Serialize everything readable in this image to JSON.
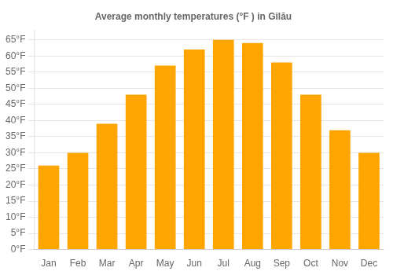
{
  "chart_data": {
    "type": "bar",
    "title": "Average monthly temperatures (°F ) in Gilău",
    "categories": [
      "Jan",
      "Feb",
      "Mar",
      "Apr",
      "May",
      "Jun",
      "Jul",
      "Aug",
      "Sep",
      "Oct",
      "Nov",
      "Dec"
    ],
    "values": [
      26,
      30,
      39,
      48,
      57,
      62,
      65,
      64,
      58,
      48,
      37,
      30
    ],
    "color": "#FFA500",
    "ylim": [
      0,
      68
    ],
    "yticks": [
      {
        "value": 0,
        "label": "0°F"
      },
      {
        "value": 5,
        "label": "5°F"
      },
      {
        "value": 10,
        "label": "10°F"
      },
      {
        "value": 15,
        "label": "15°F"
      },
      {
        "value": 20,
        "label": "20°F"
      },
      {
        "value": 25,
        "label": "25°F"
      },
      {
        "value": 30,
        "label": "30°F"
      },
      {
        "value": 35,
        "label": "35°F"
      },
      {
        "value": 40,
        "label": "40°F"
      },
      {
        "value": 45,
        "label": "45°F"
      },
      {
        "value": 50,
        "label": "50°F"
      },
      {
        "value": 55,
        "label": "55°F"
      },
      {
        "value": 60,
        "label": "60°F"
      },
      {
        "value": 65,
        "label": "65°F"
      }
    ],
    "grid": "y"
  }
}
